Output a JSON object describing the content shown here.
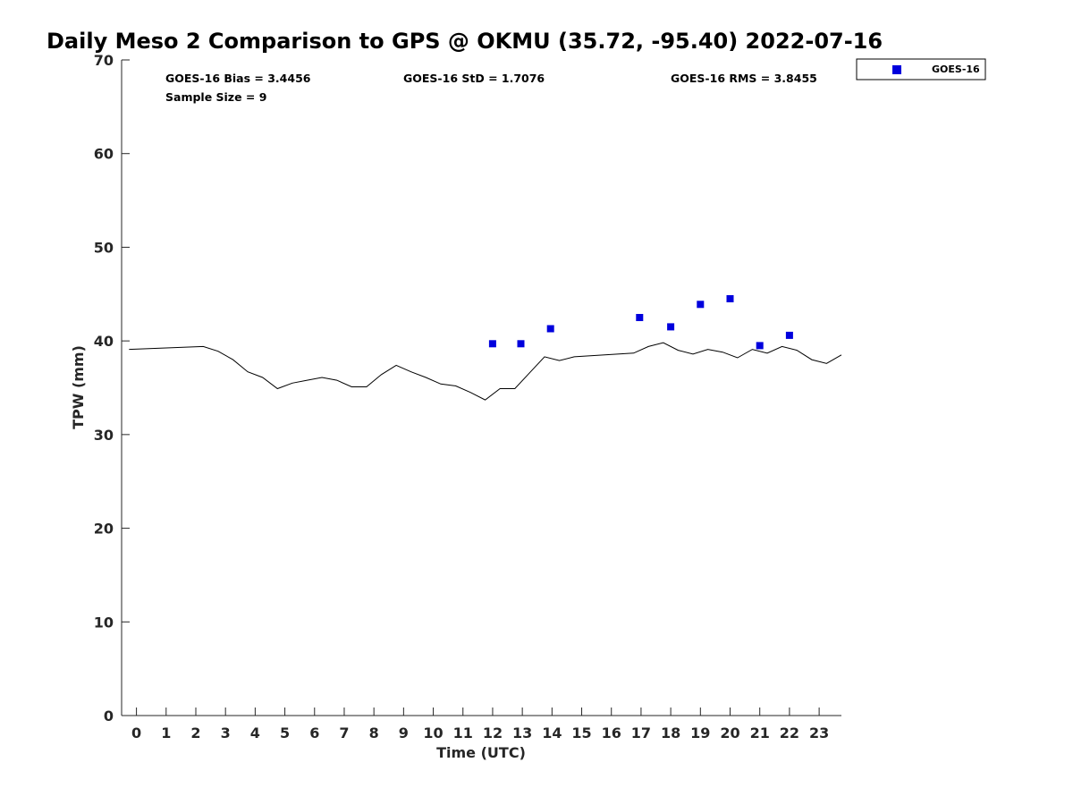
{
  "chart_data": {
    "type": "scatter",
    "title": "Daily Meso 2 Comparison to GPS @ OKMU (35.72, -95.40) 2022-07-16",
    "xlabel": "Time (UTC)",
    "ylabel": "TPW (mm)",
    "xlim": [
      -0.5,
      23.75
    ],
    "ylim": [
      0,
      70
    ],
    "x_ticks": [
      0,
      1,
      2,
      3,
      4,
      5,
      6,
      7,
      8,
      9,
      10,
      11,
      12,
      13,
      14,
      15,
      16,
      17,
      18,
      19,
      20,
      21,
      22,
      23
    ],
    "y_ticks": [
      0,
      10,
      20,
      30,
      40,
      50,
      60,
      70
    ],
    "grid": false,
    "legend": {
      "position": "top-right-outside",
      "entries": [
        "GOES-16"
      ]
    },
    "stats": {
      "bias": "GOES-16 Bias = 3.4456",
      "std": "GOES-16 StD = 1.7076",
      "rms": "GOES-16 RMS = 3.8455",
      "sample": "Sample Size = 9"
    },
    "series": [
      {
        "kind": "line",
        "color": "#000000",
        "x": [
          -0.25,
          2.25,
          2.75,
          3.25,
          3.75,
          4.25,
          4.75,
          5.25,
          5.75,
          6.25,
          6.75,
          7.25,
          7.75,
          8.25,
          8.75,
          9.25,
          9.75,
          10.25,
          10.75,
          11.25,
          11.75,
          12.25,
          12.75,
          13.25,
          13.75,
          14.25,
          14.75,
          16.75,
          17.25,
          17.75,
          18.25,
          18.75,
          19.25,
          19.75,
          20.25,
          20.75,
          21.25,
          21.75,
          22.25,
          22.75,
          23.25,
          23.75
        ],
        "y": [
          39.1,
          39.4,
          38.9,
          38.0,
          36.7,
          36.1,
          34.9,
          35.5,
          35.8,
          36.1,
          35.8,
          35.1,
          35.1,
          36.4,
          37.4,
          36.7,
          36.1,
          35.4,
          35.2,
          34.5,
          33.7,
          34.9,
          34.9,
          36.6,
          38.3,
          37.9,
          38.3,
          38.7,
          39.4,
          39.8,
          39.0,
          38.6,
          39.1,
          38.8,
          38.2,
          39.1,
          38.7,
          39.4,
          39.0,
          38.0,
          37.6,
          38.5
        ]
      },
      {
        "kind": "scatter",
        "name": "GOES-16",
        "color": "#0000dd",
        "x": [
          12.0,
          12.95,
          13.95,
          16.95,
          18.0,
          19.0,
          20.0,
          21.0,
          22.0
        ],
        "y": [
          39.7,
          39.7,
          41.3,
          42.5,
          41.5,
          43.9,
          44.5,
          39.5,
          40.6
        ]
      }
    ]
  }
}
